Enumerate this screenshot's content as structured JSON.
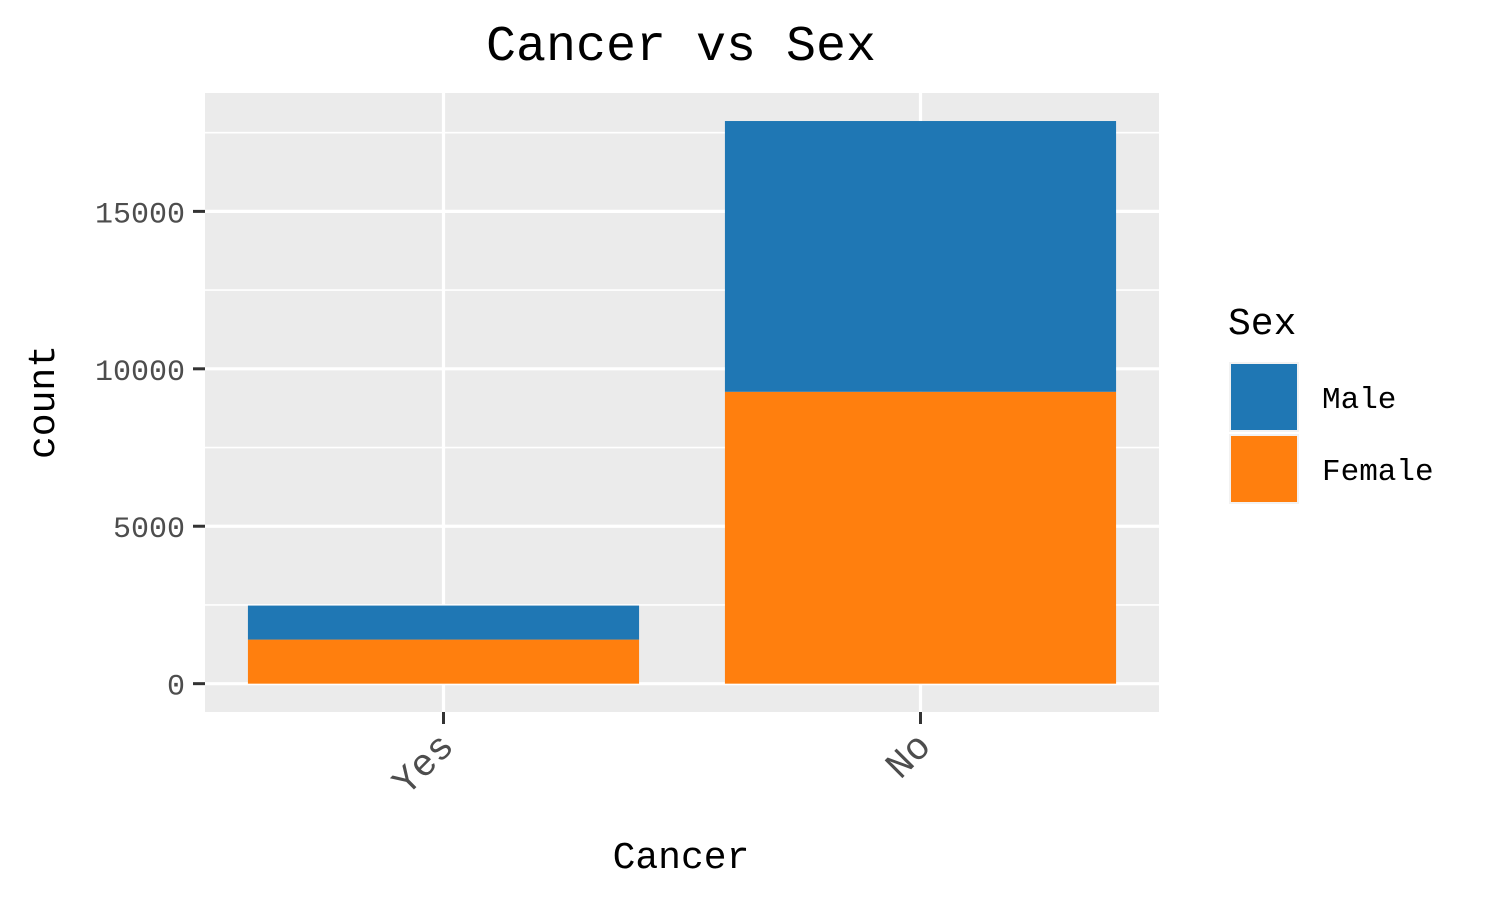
{
  "chart_data": {
    "type": "bar",
    "stacked": true,
    "title": "Cancer vs Sex",
    "xlabel": "Cancer",
    "ylabel": "count",
    "categories": [
      "Yes",
      "No"
    ],
    "series": [
      {
        "name": "Female",
        "values": [
          1400,
          9270
        ],
        "color": "#ff7f0e"
      },
      {
        "name": "Male",
        "values": [
          1080,
          8600
        ],
        "color": "#1f77b4"
      }
    ],
    "yticks": [
      0,
      5000,
      10000,
      15000
    ],
    "ylim": [
      -900,
      18760
    ],
    "grid": true,
    "panel_background": "#ebebeb",
    "legend": {
      "title": "Sex",
      "position": "right",
      "entries": [
        {
          "label": "Male",
          "color": "#1f77b4"
        },
        {
          "label": "Female",
          "color": "#ff7f0e"
        }
      ]
    }
  }
}
